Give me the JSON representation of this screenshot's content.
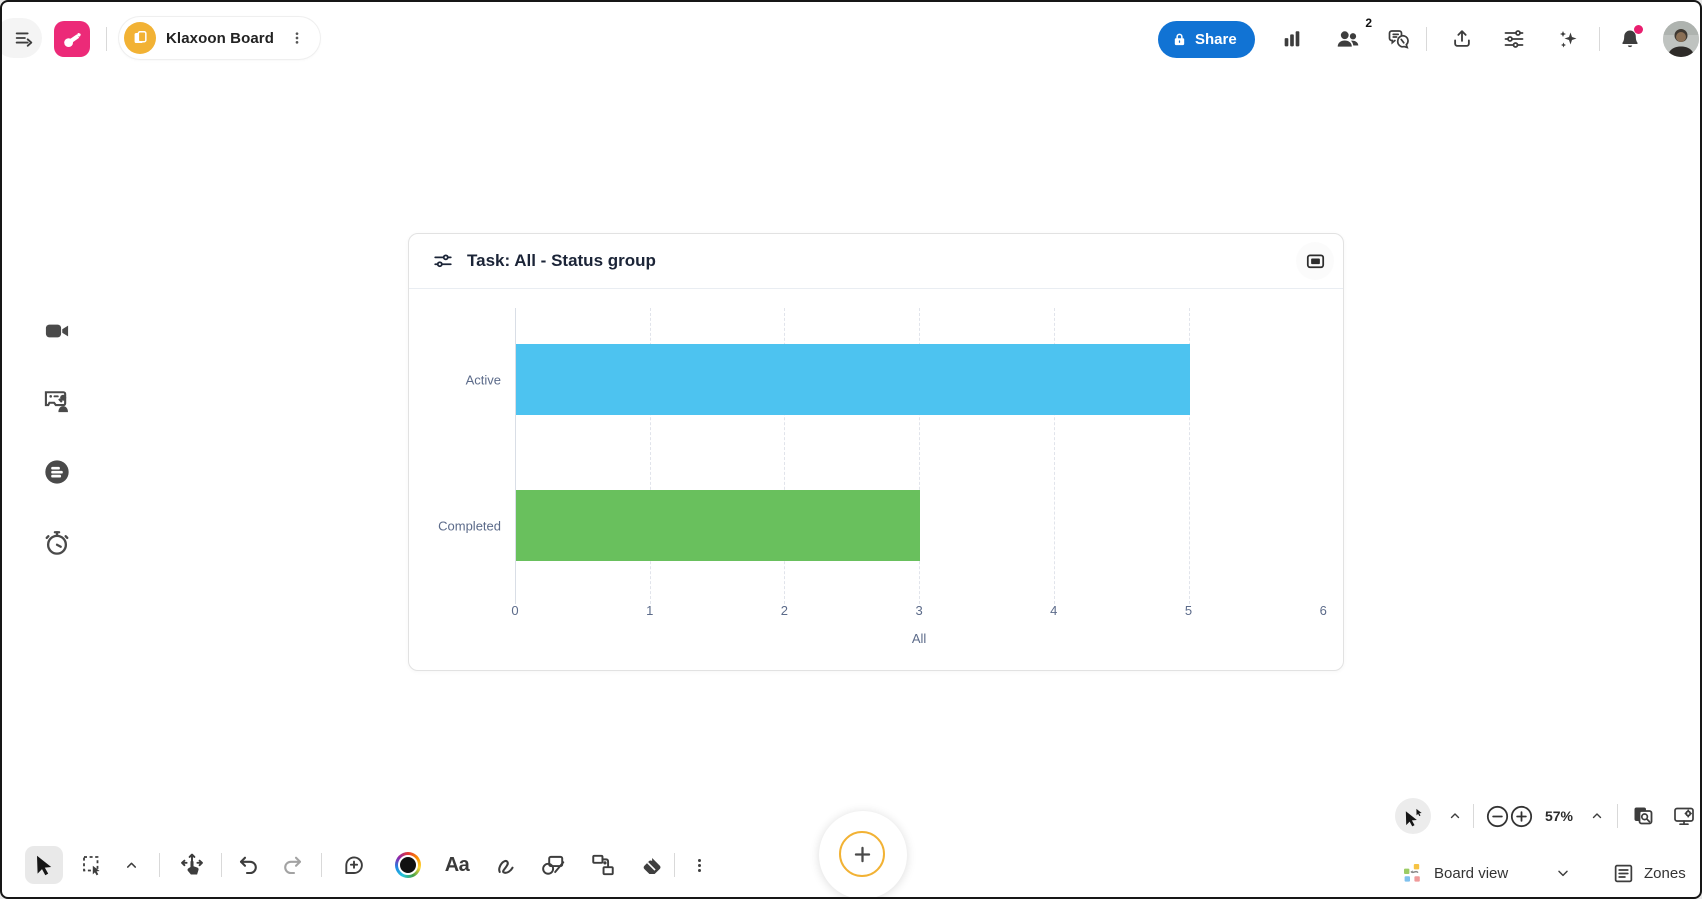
{
  "topbar": {
    "board_name": "Klaxoon Board",
    "share_label": "Share",
    "participants_badge": "2"
  },
  "toolbar": {
    "text_tool_label": "Aa"
  },
  "controls": {
    "zoom_level": "57%",
    "board_view_label": "Board view",
    "zones_label": "Zones"
  },
  "chart_data": {
    "type": "bar",
    "orientation": "horizontal",
    "title": "Task: All - Status group",
    "categories": [
      "Active",
      "Completed"
    ],
    "values": [
      5,
      3
    ],
    "bar_colors": [
      "#4dc3f0",
      "#69c05d"
    ],
    "xlabel": "All",
    "xlim": [
      0,
      6
    ],
    "xticks": [
      0,
      1,
      2,
      3,
      4,
      5,
      6
    ],
    "grid": "dashed-vertical"
  },
  "colors": {
    "accent_blue": "#1173d4",
    "brand_pink": "#ec2a78",
    "brand_yellow": "#f2b234",
    "bar_blue": "#4dc3f0",
    "bar_green": "#69c05d",
    "notification_dot": "#e91e6f"
  }
}
